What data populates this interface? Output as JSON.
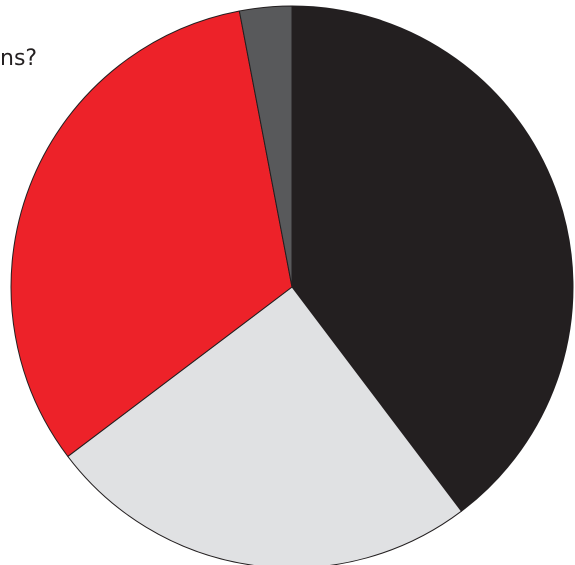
{
  "chart_data": {
    "type": "pie",
    "title": "ns?",
    "labels": [
      "",
      "",
      "",
      ""
    ],
    "values": [
      39.7,
      25.0,
      32.3,
      3.0
    ],
    "colors": [
      "#231f20",
      "#e0e1e3",
      "#ed2229",
      "#58595b"
    ],
    "edge_color": "#231f20",
    "start_angle": "12 o'clock",
    "direction": "clockwise"
  }
}
